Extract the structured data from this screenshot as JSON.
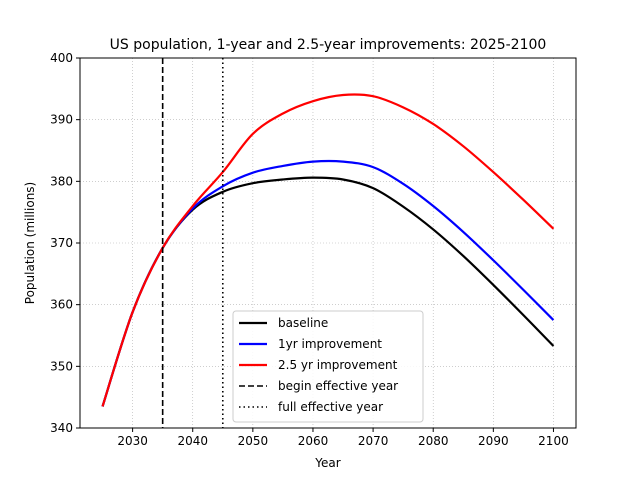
{
  "chart_data": {
    "type": "line",
    "title": "US population, 1-year and 2.5-year improvements: 2025-2100",
    "xlabel": "Year",
    "ylabel": "Population (millions)",
    "xlim": [
      2021.25,
      2103.75
    ],
    "ylim": [
      340,
      400
    ],
    "xticks": [
      2030,
      2040,
      2050,
      2060,
      2070,
      2080,
      2090,
      2100
    ],
    "yticks": [
      340,
      350,
      360,
      370,
      380,
      390,
      400
    ],
    "grid": true,
    "legend_position": "lower-center",
    "x": [
      2025,
      2030,
      2035,
      2040,
      2045,
      2050,
      2055,
      2060,
      2065,
      2070,
      2075,
      2080,
      2085,
      2090,
      2095,
      2100
    ],
    "series": [
      {
        "name": "baseline",
        "color": "#000000",
        "style": "solid",
        "values": [
          343.5,
          358.8,
          369.2,
          375.4,
          378.3,
          379.7,
          380.3,
          380.6,
          380.3,
          378.9,
          375.9,
          372.2,
          367.9,
          363.2,
          358.3,
          353.3
        ]
      },
      {
        "name": "1yr improvement",
        "color": "#0000ff",
        "style": "solid",
        "values": [
          343.5,
          358.8,
          369.2,
          375.6,
          379.2,
          381.4,
          382.5,
          383.2,
          383.2,
          382.3,
          379.6,
          376.0,
          371.8,
          367.2,
          362.4,
          357.5
        ]
      },
      {
        "name": "2.5 yr improvement",
        "color": "#ff0000",
        "style": "solid",
        "values": [
          343.5,
          358.8,
          369.2,
          376.0,
          381.5,
          387.7,
          391.0,
          393.0,
          394.0,
          393.8,
          392.0,
          389.3,
          385.7,
          381.5,
          377.0,
          372.3
        ]
      }
    ],
    "vlines": [
      {
        "name": "begin effective year",
        "x": 2035,
        "color": "#000000",
        "style": "dashed"
      },
      {
        "name": "full effective year",
        "x": 2045,
        "color": "#000000",
        "style": "dotted"
      }
    ]
  }
}
